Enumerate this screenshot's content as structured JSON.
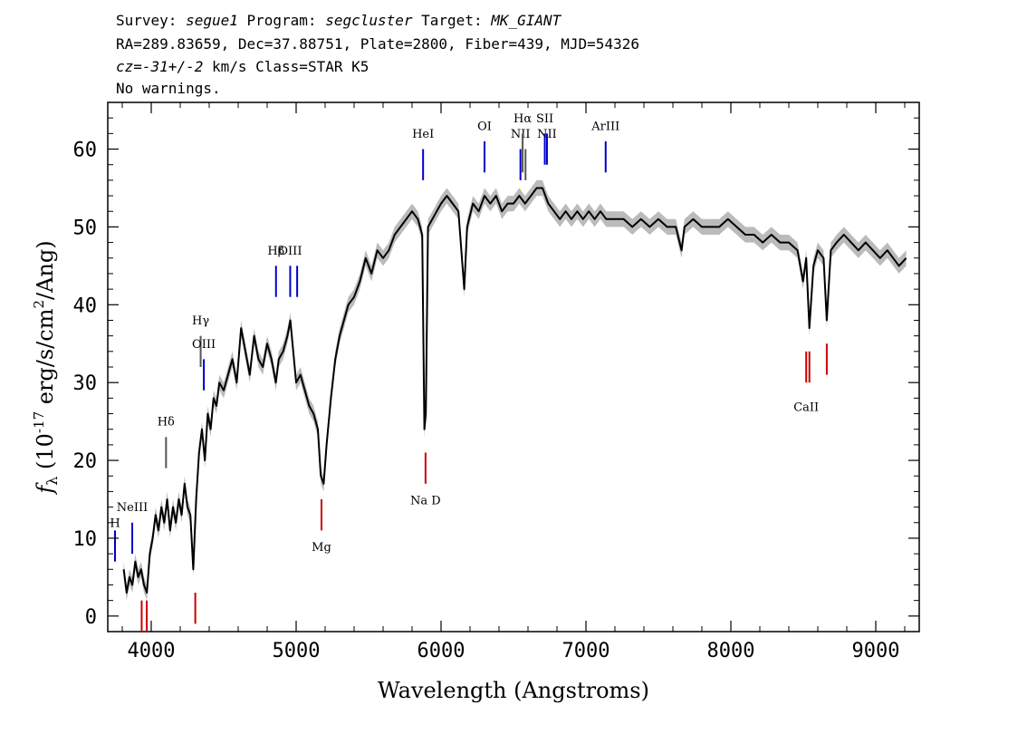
{
  "header": {
    "line1": {
      "survey_label": "Survey: ",
      "survey": "segue1",
      "program_label": " Program: ",
      "program": "segcluster",
      "target_label": " Target: ",
      "target": "MK_GIANT"
    },
    "line2": "RA=289.83659, Dec=37.88751, Plate=2800, Fiber=439, MJD=54326",
    "line3": {
      "cz_label": "cz",
      "cz_eq": "=",
      "cz_value": "-31+/-2",
      "cz_units": " km/s Class=STAR K5"
    },
    "line4": "No warnings."
  },
  "chart_data": {
    "type": "line",
    "xlabel": "Wavelength (Angstroms)",
    "ylabel": "f_λ (10^-17 erg/s/cm^2/Ang)",
    "xlim": [
      3700,
      9300
    ],
    "ylim": [
      -2,
      66
    ],
    "x_ticks": [
      "4000",
      "5000",
      "6000",
      "7000",
      "8000",
      "9000"
    ],
    "y_ticks": [
      "0",
      "10",
      "20",
      "30",
      "40",
      "50",
      "60"
    ],
    "series": [
      {
        "color": "#000000",
        "error_color": "#bbbbbb",
        "points": [
          [
            3810,
            6
          ],
          [
            3830,
            3
          ],
          [
            3850,
            5
          ],
          [
            3870,
            4
          ],
          [
            3890,
            7
          ],
          [
            3910,
            5
          ],
          [
            3930,
            6
          ],
          [
            3950,
            4
          ],
          [
            3970,
            3
          ],
          [
            3990,
            8
          ],
          [
            4010,
            10
          ],
          [
            4030,
            13
          ],
          [
            4050,
            11
          ],
          [
            4070,
            14
          ],
          [
            4090,
            12
          ],
          [
            4110,
            15
          ],
          [
            4130,
            11
          ],
          [
            4150,
            14
          ],
          [
            4170,
            12
          ],
          [
            4190,
            15
          ],
          [
            4210,
            13
          ],
          [
            4230,
            17
          ],
          [
            4250,
            14
          ],
          [
            4270,
            13
          ],
          [
            4290,
            6
          ],
          [
            4310,
            15
          ],
          [
            4330,
            21
          ],
          [
            4350,
            24
          ],
          [
            4370,
            20
          ],
          [
            4390,
            26
          ],
          [
            4410,
            24
          ],
          [
            4430,
            28
          ],
          [
            4450,
            27
          ],
          [
            4470,
            30
          ],
          [
            4500,
            29
          ],
          [
            4530,
            31
          ],
          [
            4560,
            33
          ],
          [
            4590,
            30
          ],
          [
            4620,
            37
          ],
          [
            4650,
            34
          ],
          [
            4680,
            31
          ],
          [
            4710,
            36
          ],
          [
            4740,
            33
          ],
          [
            4770,
            32
          ],
          [
            4800,
            35
          ],
          [
            4830,
            33
          ],
          [
            4860,
            30
          ],
          [
            4880,
            33
          ],
          [
            4910,
            34
          ],
          [
            4940,
            36
          ],
          [
            4960,
            38
          ],
          [
            4980,
            34
          ],
          [
            5000,
            30
          ],
          [
            5030,
            31
          ],
          [
            5060,
            29
          ],
          [
            5090,
            27
          ],
          [
            5120,
            26
          ],
          [
            5150,
            24
          ],
          [
            5170,
            18
          ],
          [
            5190,
            17
          ],
          [
            5210,
            22
          ],
          [
            5240,
            28
          ],
          [
            5270,
            33
          ],
          [
            5300,
            36
          ],
          [
            5330,
            38
          ],
          [
            5360,
            40
          ],
          [
            5400,
            41
          ],
          [
            5440,
            43
          ],
          [
            5480,
            46
          ],
          [
            5520,
            44
          ],
          [
            5560,
            47
          ],
          [
            5600,
            46
          ],
          [
            5640,
            47
          ],
          [
            5680,
            49
          ],
          [
            5720,
            50
          ],
          [
            5760,
            51
          ],
          [
            5800,
            52
          ],
          [
            5840,
            51
          ],
          [
            5870,
            49
          ],
          [
            5885,
            24
          ],
          [
            5895,
            26
          ],
          [
            5910,
            50
          ],
          [
            5940,
            51
          ],
          [
            5970,
            52
          ],
          [
            6000,
            53
          ],
          [
            6040,
            54
          ],
          [
            6080,
            53
          ],
          [
            6120,
            52
          ],
          [
            6160,
            42
          ],
          [
            6180,
            50
          ],
          [
            6220,
            53
          ],
          [
            6260,
            52
          ],
          [
            6300,
            54
          ],
          [
            6340,
            53
          ],
          [
            6380,
            54
          ],
          [
            6420,
            52
          ],
          [
            6460,
            53
          ],
          [
            6500,
            53
          ],
          [
            6540,
            54
          ],
          [
            6580,
            53
          ],
          [
            6620,
            54
          ],
          [
            6660,
            55
          ],
          [
            6700,
            55
          ],
          [
            6740,
            53
          ],
          [
            6780,
            52
          ],
          [
            6820,
            51
          ],
          [
            6860,
            52
          ],
          [
            6900,
            51
          ],
          [
            6940,
            52
          ],
          [
            6980,
            51
          ],
          [
            7020,
            52
          ],
          [
            7060,
            51
          ],
          [
            7100,
            52
          ],
          [
            7140,
            51
          ],
          [
            7200,
            51
          ],
          [
            7260,
            51
          ],
          [
            7320,
            50
          ],
          [
            7380,
            51
          ],
          [
            7440,
            50
          ],
          [
            7500,
            51
          ],
          [
            7560,
            50
          ],
          [
            7620,
            50
          ],
          [
            7660,
            47
          ],
          [
            7680,
            50
          ],
          [
            7740,
            51
          ],
          [
            7800,
            50
          ],
          [
            7860,
            50
          ],
          [
            7920,
            50
          ],
          [
            7980,
            51
          ],
          [
            8040,
            50
          ],
          [
            8100,
            49
          ],
          [
            8160,
            49
          ],
          [
            8220,
            48
          ],
          [
            8280,
            49
          ],
          [
            8340,
            48
          ],
          [
            8400,
            48
          ],
          [
            8460,
            47
          ],
          [
            8498,
            43
          ],
          [
            8520,
            46
          ],
          [
            8542,
            37
          ],
          [
            8570,
            45
          ],
          [
            8600,
            47
          ],
          [
            8640,
            46
          ],
          [
            8662,
            38
          ],
          [
            8690,
            47
          ],
          [
            8730,
            48
          ],
          [
            8780,
            49
          ],
          [
            8830,
            48
          ],
          [
            8880,
            47
          ],
          [
            8930,
            48
          ],
          [
            8980,
            47
          ],
          [
            9030,
            46
          ],
          [
            9080,
            47
          ],
          [
            9120,
            46
          ],
          [
            9160,
            45
          ],
          [
            9210,
            46
          ]
        ]
      }
    ],
    "line_markers": [
      {
        "label": "H",
        "wavelength": 3750,
        "y_label": 11,
        "y1": 11,
        "y2": 7,
        "color": "#0000cc"
      },
      {
        "label": "NeIII",
        "wavelength": 3869,
        "y_label": 13,
        "y1": 12,
        "y2": 8,
        "color": "#0000cc"
      },
      {
        "label": "Hδ",
        "wavelength": 4102,
        "y_label": 24,
        "y1": 23,
        "y2": 19,
        "color": "#555555"
      },
      {
        "label": "Hγ",
        "wavelength": 4341,
        "y_label": 37,
        "y1": 36,
        "y2": 32,
        "color": "#555555"
      },
      {
        "label": "OIII",
        "wavelength": 4363,
        "y_label": 34,
        "y1": 33,
        "y2": 29,
        "color": "#0000cc"
      },
      {
        "label": "Hβ",
        "wavelength": 4861,
        "y_label": 46,
        "y1": 45,
        "y2": 41,
        "color": "#0000cc"
      },
      {
        "label": "OIII",
        "wavelength": 4959,
        "y_label": 46,
        "y1": 45,
        "y2": 41,
        "color": "#0000cc"
      },
      {
        "label": "",
        "wavelength": 5007,
        "y_label": 46,
        "y1": 45,
        "y2": 41,
        "color": "#0000cc"
      },
      {
        "label": "HeI",
        "wavelength": 5876,
        "y_label": 61,
        "y1": 60,
        "y2": 56,
        "color": "#0000cc"
      },
      {
        "label": "OI",
        "wavelength": 6300,
        "y_label": 62,
        "y1": 61,
        "y2": 57,
        "color": "#0000cc"
      },
      {
        "label": "NII",
        "wavelength": 6548,
        "y_label": 61,
        "y1": 60,
        "y2": 56,
        "color": "#0000cc"
      },
      {
        "label": "Hα",
        "wavelength": 6563,
        "y_label": 63,
        "y1": 62,
        "y2": 57,
        "color": "#555555"
      },
      {
        "label": "",
        "wavelength": 6583,
        "y_label": 61,
        "y1": 60,
        "y2": 56,
        "color": "#555555"
      },
      {
        "label": "SII",
        "wavelength": 6716,
        "y_label": 63,
        "y1": 62,
        "y2": 58,
        "color": "#0000cc"
      },
      {
        "label": "NII",
        "wavelength": 6731,
        "y_label": 61,
        "y1": 62,
        "y2": 58,
        "color": "#0000cc"
      },
      {
        "label": "ArIII",
        "wavelength": 7136,
        "y_label": 62,
        "y1": 61,
        "y2": 57,
        "color": "#0000cc"
      },
      {
        "label": "",
        "wavelength": 3934,
        "y_label": 0,
        "y1": 2,
        "y2": -2,
        "color": "#cc0000"
      },
      {
        "label": "",
        "wavelength": 3969,
        "y_label": 0,
        "y1": 2,
        "y2": -2,
        "color": "#cc0000"
      },
      {
        "label": "",
        "wavelength": 4304,
        "y_label": 0,
        "y1": 3,
        "y2": -1,
        "color": "#cc0000"
      },
      {
        "label": "Mg",
        "wavelength": 5175,
        "y_label": 10,
        "y1": 15,
        "y2": 11,
        "color": "#cc0000"
      },
      {
        "label": "Na D",
        "wavelength": 5893,
        "y_label": 16,
        "y1": 21,
        "y2": 17,
        "color": "#cc0000"
      },
      {
        "label": "CaII",
        "wavelength": 8520,
        "y_label": 28,
        "y1": 34,
        "y2": 30,
        "color": "#cc0000"
      },
      {
        "label": "",
        "wavelength": 8542,
        "y_label": 28,
        "y1": 34,
        "y2": 30,
        "color": "#cc0000"
      },
      {
        "label": "",
        "wavelength": 8662,
        "y_label": 28,
        "y1": 35,
        "y2": 31,
        "color": "#cc0000"
      }
    ]
  }
}
